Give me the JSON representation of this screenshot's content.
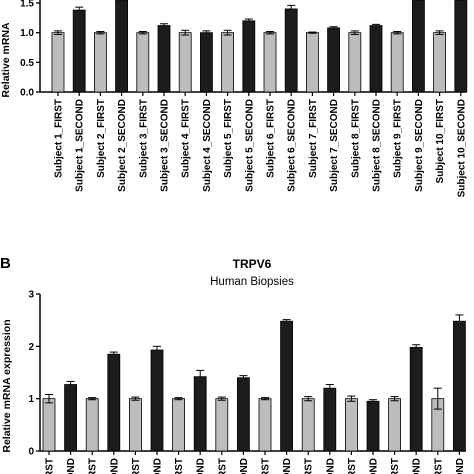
{
  "chart_data": [
    {
      "type": "bar",
      "panel_label": "",
      "title": "",
      "subtitle": "",
      "ylabel": "Relative mRNA",
      "ylim": [
        0.0,
        1.5
      ],
      "yticks": [
        "0.0",
        "0.5",
        "1.0",
        "1.5"
      ],
      "categories": [
        "Subject 1_FIRST",
        "Subject 1_SECOND",
        "Subject 2_FIRST",
        "Subject 2_SECOND",
        "Subject 3_FIRST",
        "Subject 3_SECOND",
        "Subject 4_FIRST",
        "Subject 4_SECOND",
        "Subject 5_FIRST",
        "Subject 5_SECOND",
        "Subject 6_FIRST",
        "Subject 6_SECOND",
        "Subject 7_FIRST",
        "Subject 7_SECOND",
        "Subject 8_FIRST",
        "Subject 8_SECOND",
        "Subject 9_FIRST",
        "Subject 9_SECOND",
        "Subject 10_FIRST",
        "Subject 10_SECOND"
      ],
      "values": [
        1.0,
        1.38,
        1.0,
        1.6,
        1.0,
        1.12,
        1.0,
        1.0,
        1.0,
        1.2,
        1.0,
        1.4,
        1.0,
        1.08,
        1.0,
        1.12,
        1.0,
        1.6,
        1.0,
        1.6
      ],
      "errors": [
        0.03,
        0.05,
        0.02,
        0.05,
        0.02,
        0.03,
        0.04,
        0.03,
        0.04,
        0.03,
        0.02,
        0.06,
        0.01,
        0.02,
        0.03,
        0.02,
        0.02,
        0.05,
        0.03,
        0.05
      ],
      "bar_colors": {
        "FIRST": "#bdbdbd",
        "SECOND": "#1c1c1c"
      }
    },
    {
      "type": "bar",
      "panel_label": "B",
      "title": "TRPV6",
      "subtitle": "Human Biopsies",
      "ylabel": "Relative mRNA expression",
      "ylim": [
        0,
        3
      ],
      "yticks": [
        "0",
        "1",
        "2",
        "3"
      ],
      "categories": [
        "RST",
        "OND",
        "RST",
        "OND",
        "RST",
        "OND",
        "RST",
        "OND",
        "RST",
        "OND",
        "RST",
        "OND",
        "RST",
        "OND",
        "RST",
        "OND",
        "RST",
        "OND",
        "RST",
        "OND"
      ],
      "values": [
        1.0,
        1.27,
        1.0,
        1.85,
        1.0,
        1.93,
        1.0,
        1.42,
        1.0,
        1.4,
        1.0,
        2.48,
        1.0,
        1.2,
        1.0,
        0.95,
        1.0,
        1.98,
        1.0,
        2.48
      ],
      "errors": [
        0.08,
        0.06,
        0.02,
        0.04,
        0.03,
        0.07,
        0.02,
        0.12,
        0.03,
        0.04,
        0.02,
        0.03,
        0.04,
        0.07,
        0.05,
        0.03,
        0.04,
        0.05,
        0.2,
        0.12
      ],
      "bar_colors": {
        "FIRST": "#bdbdbd",
        "SECOND": "#1c1c1c"
      }
    }
  ]
}
